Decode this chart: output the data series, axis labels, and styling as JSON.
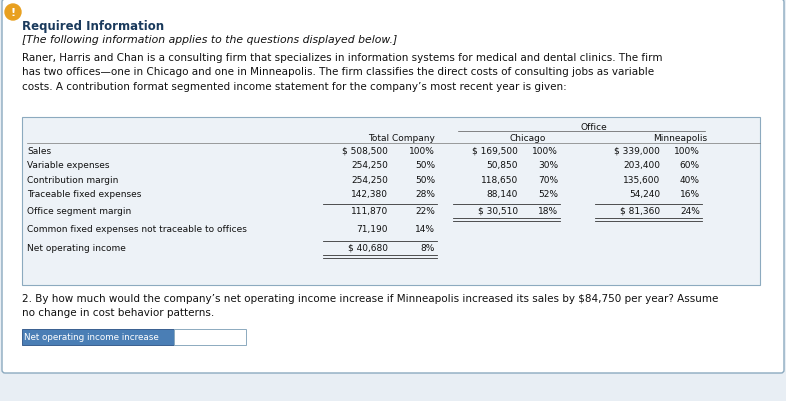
{
  "title": "Required Information",
  "subtitle": "[The following information applies to the questions displayed below.]",
  "body_text": "Raner, Harris and Chan is a consulting firm that specializes in information systems for medical and dental clinics. The firm\nhas two offices—one in Chicago and one in Minneapolis. The firm classifies the direct costs of consulting jobs as variable\ncosts. A contribution format segmented income statement for the company’s most recent year is given:",
  "office_header": "Office",
  "col_headers": [
    "Total Company",
    "Chicago",
    "Minneapolis"
  ],
  "row_labels": [
    "Sales",
    "Variable expenses",
    "Contribution margin",
    "Traceable fixed expenses",
    "Office segment margin",
    "Common fixed expenses not traceable to offices",
    "Net operating income"
  ],
  "table_data": [
    [
      "$ 508,500",
      "100%",
      "$ 169,500",
      "100%",
      "$ 339,000",
      "100%"
    ],
    [
      "254,250",
      "50%",
      "50,850",
      "30%",
      "203,400",
      "60%"
    ],
    [
      "254,250",
      "50%",
      "118,650",
      "70%",
      "135,600",
      "40%"
    ],
    [
      "142,380",
      "28%",
      "88,140",
      "52%",
      "54,240",
      "16%"
    ],
    [
      "111,870",
      "22%",
      "$ 30,510",
      "18%",
      "$ 81,360",
      "24%"
    ],
    [
      "71,190",
      "14%",
      "",
      "",
      "",
      ""
    ],
    [
      "$ 40,680",
      "8%",
      "",
      "",
      "",
      ""
    ]
  ],
  "question_text": "2. By how much would the company’s net operating income increase if Minneapolis increased its sales by $84,750 per year? Assume\nno change in cost behavior patterns.",
  "answer_label": "Net operating income increase",
  "bg_color": "#e8eef4",
  "box_bg": "#ffffff",
  "answer_label_bg": "#4a7eb5",
  "answer_label_fg": "#ffffff",
  "border_color": "#8caabf",
  "title_color": "#1a3a5c",
  "body_color": "#111111",
  "table_bg": "#edf2f7",
  "icon_color": "#e8a020",
  "table_font_size": 6.5,
  "body_font_size": 7.5,
  "title_font_size": 8.5,
  "subtitle_font_size": 7.8
}
